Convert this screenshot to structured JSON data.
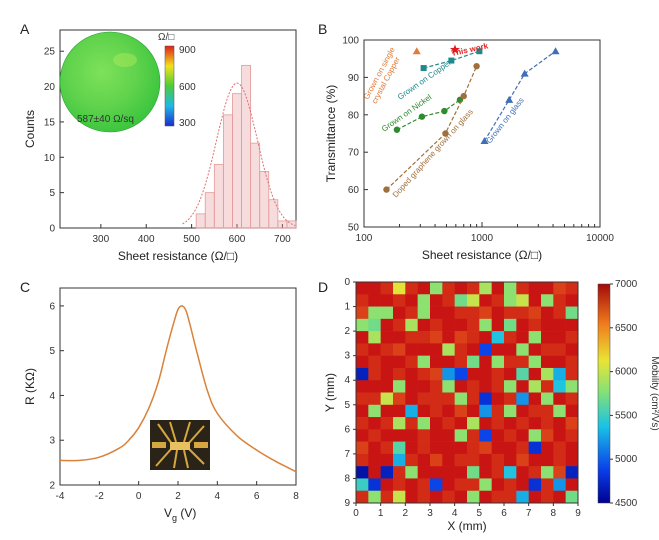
{
  "chart_data": [
    {
      "panel": "A",
      "type": "bar",
      "xlabel": "Sheet resistance (Ω/□)",
      "ylabel": "Counts",
      "xlim": [
        210,
        730
      ],
      "ylim": [
        0,
        28
      ],
      "xticks": [
        300,
        400,
        500,
        600,
        700
      ],
      "yticks": [
        0,
        5,
        10,
        15,
        20,
        25
      ],
      "bins": [
        {
          "center": 520,
          "value": 2
        },
        {
          "center": 540,
          "value": 5
        },
        {
          "center": 560,
          "value": 9
        },
        {
          "center": 580,
          "value": 16
        },
        {
          "center": 600,
          "value": 19
        },
        {
          "center": 620,
          "value": 23
        },
        {
          "center": 640,
          "value": 12
        },
        {
          "center": 660,
          "value": 8
        },
        {
          "center": 680,
          "value": 4
        },
        {
          "center": 700,
          "value": 1
        },
        {
          "center": 720,
          "value": 1
        }
      ],
      "bin_width": 20,
      "fit": {
        "type": "gaussian",
        "mean": 600,
        "sigma": 45,
        "peak": 20.5
      },
      "inset": {
        "colorbar_unit": "Ω/□",
        "colorbar_ticks": [
          900,
          600,
          300
        ],
        "annotation": "587±40 Ω/sq"
      },
      "bar_color": "#e59a9a"
    },
    {
      "panel": "B",
      "type": "scatter",
      "xlabel": "Sheet resistance (Ω/□)",
      "ylabel": "Transmittance (%)",
      "xscale": "log",
      "xlim": [
        100,
        10000
      ],
      "ylim": [
        50,
        100
      ],
      "xticks": [
        100,
        1000,
        10000
      ],
      "yticks": [
        50,
        60,
        70,
        80,
        90,
        100
      ],
      "series": [
        {
          "name": "Grown on single crystal Copper",
          "color": "#e07b39",
          "marker": "triangle",
          "points": [
            [
              280,
              97
            ]
          ]
        },
        {
          "name": "This work",
          "color": "#e31a1c",
          "marker": "star",
          "points": [
            [
              590,
              97.4
            ]
          ]
        },
        {
          "name": "Grown on Copper",
          "color": "#1f8a8a",
          "marker": "square",
          "points": [
            [
              320,
              92.5
            ],
            [
              550,
              94.5
            ],
            [
              950,
              97
            ]
          ]
        },
        {
          "name": "Grown on Nickel",
          "color": "#2e8b2e",
          "marker": "circle",
          "points": [
            [
              190,
              76
            ],
            [
              310,
              79.5
            ],
            [
              480,
              81
            ],
            [
              650,
              84
            ]
          ]
        },
        {
          "name": "Grown on glass",
          "color": "#3f6fb5",
          "marker": "triangle",
          "points": [
            [
              1050,
              73
            ],
            [
              1700,
              84
            ],
            [
              2300,
              91
            ],
            [
              4200,
              97
            ]
          ]
        },
        {
          "name": "Doped graphene grown on glass",
          "color": "#a0703c",
          "marker": "circle",
          "points": [
            [
              155,
              60
            ],
            [
              490,
              75
            ],
            [
              700,
              85
            ],
            [
              900,
              93
            ]
          ]
        }
      ],
      "annotations": [
        "Grown on single crystal Copper",
        "This work",
        "Grown on Copper",
        "Grown on Nickel",
        "Grown on glass",
        "Doped graphene grown on glass"
      ]
    },
    {
      "panel": "C",
      "type": "line",
      "xlabel": "V",
      "xlabel_sub": "g",
      "xlabel_unit": "(V)",
      "ylabel": "R (KΩ)",
      "xlim": [
        -4,
        8
      ],
      "ylim": [
        2,
        6.4
      ],
      "xticks": [
        -4,
        -2,
        0,
        2,
        4,
        6,
        8
      ],
      "yticks": [
        2,
        3,
        4,
        5,
        6
      ],
      "x": [
        -4,
        -3,
        -2,
        -1,
        -0.5,
        0,
        0.5,
        1,
        1.4,
        1.8,
        2,
        2.2,
        2.4,
        2.6,
        3,
        3.5,
        4,
        5,
        6,
        7,
        8
      ],
      "y": [
        2.55,
        2.55,
        2.62,
        2.82,
        3.0,
        3.28,
        3.7,
        4.3,
        5.0,
        5.65,
        5.92,
        6.0,
        5.9,
        5.6,
        4.9,
        4.1,
        3.6,
        3.1,
        2.78,
        2.52,
        2.3
      ],
      "line_color": "#d9823b"
    },
    {
      "panel": "D",
      "type": "heatmap",
      "xlabel": "X (mm)",
      "ylabel": "Y (mm)",
      "colorbar_label": "Mobility (cm²/Vs)",
      "colorbar_ticks": [
        7000,
        6500,
        6000,
        5500,
        5000,
        4500
      ],
      "vmin": 4500,
      "vmax": 7000,
      "xticks": [
        0,
        1,
        2,
        3,
        4,
        5,
        6,
        7,
        8,
        9
      ],
      "yticks": [
        0,
        1,
        2,
        3,
        4,
        5,
        6,
        7,
        8,
        9
      ],
      "grid_size": 18,
      "values": [
        [
          7000,
          7000,
          6900,
          6100,
          6900,
          7000,
          5800,
          6900,
          7000,
          6900,
          5900,
          7000,
          5800,
          6900,
          7000,
          7000,
          6800,
          6900
        ],
        [
          6900,
          7000,
          7000,
          6900,
          7000,
          5800,
          7000,
          6900,
          5700,
          6000,
          7000,
          6900,
          5800,
          6000,
          7000,
          5800,
          6900,
          7000
        ],
        [
          6800,
          5800,
          5800,
          7000,
          6900,
          5800,
          7000,
          7000,
          6900,
          6900,
          6800,
          7000,
          6900,
          6900,
          6800,
          7000,
          6900,
          5700
        ],
        [
          5800,
          5700,
          7000,
          6900,
          5900,
          7000,
          6900,
          7000,
          7000,
          6900,
          5800,
          7000,
          5700,
          7000,
          6900,
          7000,
          7000,
          7000
        ],
        [
          7000,
          5900,
          7000,
          7000,
          6900,
          6900,
          6800,
          7000,
          6800,
          6900,
          7000,
          5400,
          6900,
          7000,
          5800,
          7000,
          7000,
          6900
        ],
        [
          6900,
          7000,
          6900,
          6800,
          7000,
          7000,
          7000,
          5900,
          6900,
          7000,
          4900,
          7000,
          7000,
          5800,
          7000,
          6900,
          6900,
          7000
        ],
        [
          7000,
          6900,
          7000,
          7000,
          6900,
          5800,
          7000,
          7000,
          6900,
          5700,
          7000,
          5800,
          6900,
          6900,
          5800,
          7000,
          7000,
          6900
        ],
        [
          4700,
          6900,
          7000,
          6900,
          7000,
          6900,
          6800,
          5200,
          4900,
          7000,
          7000,
          6900,
          7000,
          5600,
          7000,
          5900,
          5300,
          6900
        ],
        [
          7000,
          7000,
          7000,
          5800,
          7000,
          7000,
          6900,
          5800,
          7000,
          6900,
          7000,
          6900,
          5800,
          7000,
          5900,
          6900,
          5400,
          5800
        ],
        [
          6900,
          6900,
          6000,
          6800,
          7000,
          6900,
          6900,
          6900,
          5800,
          6900,
          4800,
          7000,
          6900,
          5200,
          7000,
          5800,
          7000,
          6900
        ],
        [
          7000,
          5800,
          7000,
          7000,
          5300,
          7000,
          6900,
          7000,
          6800,
          7000,
          5200,
          6900,
          5800,
          7000,
          6900,
          6900,
          5800,
          7000
        ],
        [
          6900,
          7000,
          6900,
          5900,
          6900,
          5800,
          7000,
          6900,
          7000,
          5900,
          7000,
          6900,
          7000,
          6900,
          7000,
          6900,
          7000,
          6800
        ],
        [
          7000,
          6900,
          7000,
          7000,
          7000,
          6900,
          7000,
          7000,
          5800,
          6900,
          4900,
          7000,
          6900,
          7000,
          5800,
          6800,
          7000,
          6900
        ],
        [
          6800,
          7000,
          6900,
          5600,
          7000,
          6900,
          7000,
          7000,
          7000,
          6900,
          6800,
          7000,
          7000,
          6900,
          4800,
          7000,
          6900,
          7000
        ],
        [
          6900,
          7000,
          7000,
          5300,
          6900,
          7000,
          6800,
          7000,
          6900,
          6900,
          7000,
          6900,
          7000,
          6800,
          7000,
          7000,
          6900,
          7000
        ],
        [
          4600,
          7000,
          4700,
          6900,
          5800,
          7000,
          7000,
          7000,
          7000,
          5700,
          7000,
          6900,
          5400,
          7000,
          6900,
          5800,
          6800,
          4700
        ],
        [
          5500,
          4800,
          7000,
          6900,
          7000,
          6900,
          4900,
          7000,
          6900,
          6900,
          5800,
          7000,
          6900,
          7000,
          4800,
          6900,
          5200,
          7000
        ],
        [
          6900,
          5800,
          6900,
          6000,
          7000,
          6900,
          7000,
          6900,
          7000,
          5800,
          7000,
          6900,
          6900,
          5300,
          7000,
          6900,
          7000,
          5700
        ]
      ]
    }
  ]
}
